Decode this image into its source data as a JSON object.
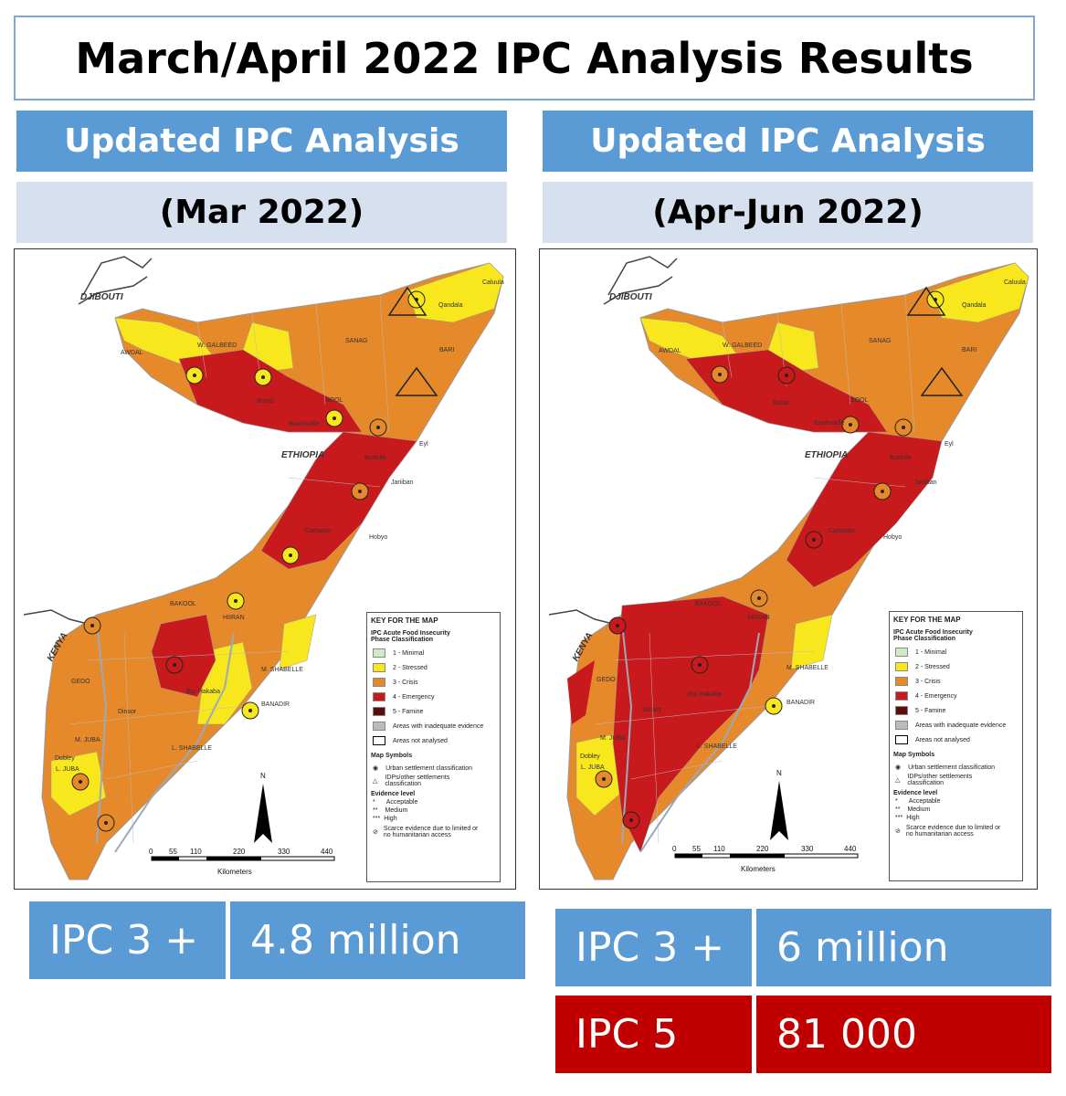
{
  "title": "March/April 2022 IPC Analysis Results",
  "panels": [
    {
      "header": "Updated IPC Analysis",
      "period": "(Mar 2022)",
      "stats": [
        {
          "label": "IPC 3 +",
          "value": "4.8 million",
          "color": "#5b9bd5"
        }
      ]
    },
    {
      "header": "Updated IPC Analysis",
      "period": "(Apr-Jun 2022)",
      "stats": [
        {
          "label": "IPC 3 +",
          "value": "6 million",
          "color": "#5b9bd5"
        },
        {
          "label": "IPC 5",
          "value": "81 000",
          "color": "#c00000"
        }
      ]
    }
  ],
  "map": {
    "countries": {
      "djibouti": "DJIBOUTI",
      "ethiopia": "ETHIOPIA",
      "kenya": "KENYA"
    },
    "regions": {
      "awdal": "AWDAL",
      "w_galbeed": "W. GALBEED",
      "sanag": "SANAG",
      "bari": "BARI",
      "sool": "SOOL",
      "bakool": "BAKOOL",
      "hiiran": "HIIRAN",
      "m_shabelle": "M. SHABELLE",
      "banadir": "BANADIR",
      "l_shabelle": "L. SHABELLE",
      "gedo": "GEDO",
      "m_juba": "M. JUBA",
      "l_juba": "L. JUBA"
    },
    "places": {
      "burao": "Burao",
      "buuhoodle": "Buuhoodle",
      "burtinle": "Burtinle",
      "eyl": "Eyl",
      "jariiban": "Jariiban",
      "hobyo": "Hobyo",
      "cadaado": "Cadaado",
      "dinsor": "Dinsor",
      "bur_hakaba": "Bur Hakaba",
      "dobley": "Dobley",
      "qandala": "Qandala",
      "caluula": "Caluula"
    },
    "legend": {
      "title": "KEY FOR THE MAP",
      "subtitle1": "IPC Acute Food Insecurity",
      "subtitle2": "Phase Classification",
      "phases": [
        {
          "label": "1 - Minimal",
          "color": "#cdebc5"
        },
        {
          "label": "2 - Stressed",
          "color": "#f8e71c"
        },
        {
          "label": "3 - Crisis",
          "color": "#e6892b"
        },
        {
          "label": "4 - Emergency",
          "color": "#c8191c"
        },
        {
          "label": "5 - Famine",
          "color": "#5e0b0b"
        }
      ],
      "inadequate": "Areas with inadequate evidence",
      "not_analysed": "Areas not analysed",
      "symbols_title": "Map Symbols",
      "urban": "Urban settlement classification",
      "idp1": "IDPs/other settlements",
      "idp2": "classification",
      "evidence_title": "Evidence level",
      "acceptable": "Acceptable",
      "medium": "Medium",
      "high": "High",
      "scarce1": "Scarce evidence due to limited or",
      "scarce2": "no humanitarian access"
    },
    "scale": {
      "ticks": [
        "0",
        "55",
        "110",
        "220",
        "330",
        "440"
      ],
      "unit": "Kilometers",
      "north": "N"
    }
  }
}
